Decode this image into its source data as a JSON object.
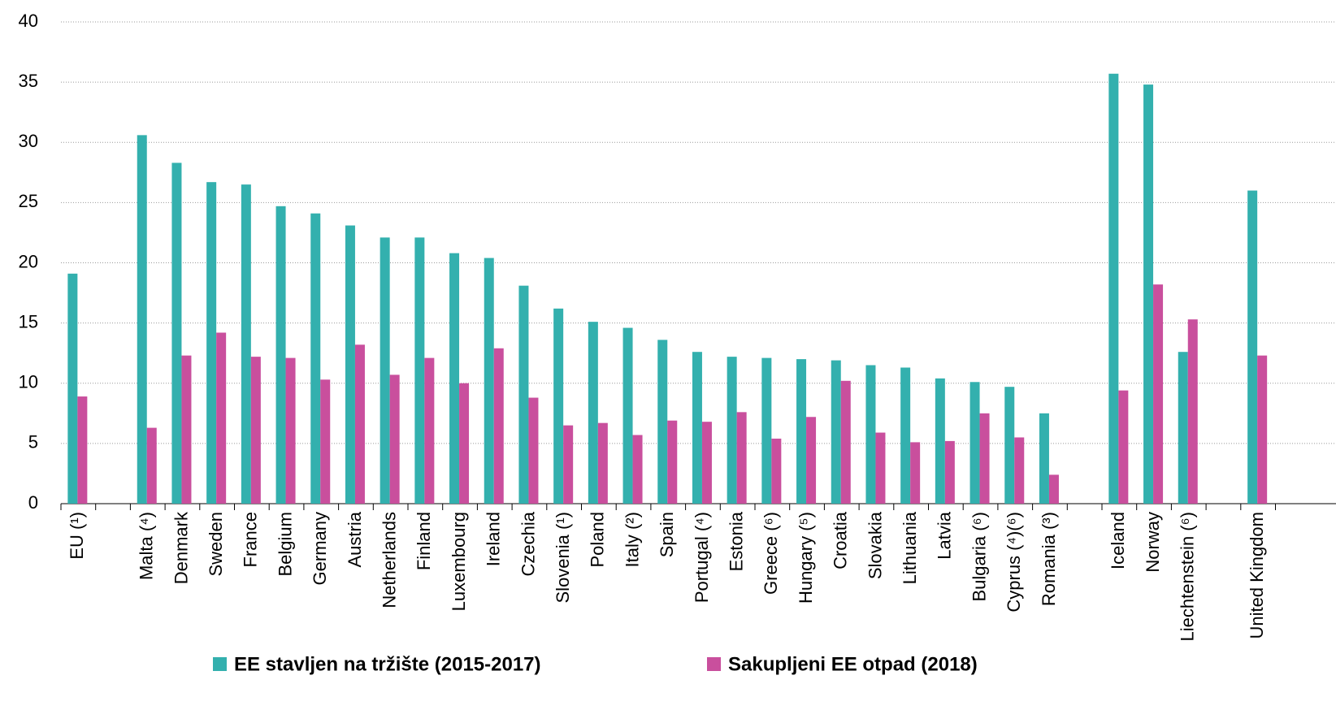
{
  "chart_data": {
    "type": "bar",
    "categories": [
      "EU (¹)",
      null,
      "Malta (⁴)",
      "Denmark",
      "Sweden",
      "France",
      "Belgium",
      "Germany",
      "Austria",
      "Netherlands",
      "Finland",
      "Luxembourg",
      "Ireland",
      "Czechia",
      "Slovenia (¹)",
      "Poland",
      "Italy (²)",
      "Spain",
      "Portugal (⁴)",
      "Estonia",
      "Greece (⁶)",
      "Hungary (⁵)",
      "Croatia",
      "Slovakia",
      "Lithuania",
      "Latvia",
      "Bulgaria (⁶)",
      "Cyprus (⁴)(⁶)",
      "Romania (³)",
      null,
      "Iceland",
      "Norway",
      "Liechtenstein (⁶)",
      null,
      "United Kingdom"
    ],
    "series": [
      {
        "name": "EE stavljen na tržište (2015-2017)",
        "color": "#33b0ae",
        "values": [
          19.1,
          null,
          30.6,
          28.3,
          26.7,
          26.5,
          24.7,
          24.1,
          23.1,
          22.1,
          22.1,
          20.8,
          20.4,
          18.1,
          16.2,
          15.1,
          14.6,
          13.6,
          12.6,
          12.2,
          12.1,
          12.0,
          11.9,
          11.5,
          11.3,
          10.4,
          10.1,
          9.7,
          7.5,
          null,
          35.7,
          34.8,
          12.6,
          null,
          26.0
        ]
      },
      {
        "name": "Sakupljeni EE otpad (2018)",
        "color": "#c94f9d",
        "values": [
          8.9,
          null,
          6.3,
          12.3,
          14.2,
          12.2,
          12.1,
          10.3,
          13.2,
          10.7,
          12.1,
          10.0,
          12.9,
          8.8,
          6.5,
          6.7,
          5.7,
          6.9,
          6.8,
          7.6,
          5.4,
          7.2,
          10.2,
          5.9,
          5.1,
          5.2,
          7.5,
          5.5,
          2.4,
          null,
          9.4,
          18.2,
          15.3,
          null,
          12.3
        ]
      }
    ],
    "ylim": [
      0,
      40
    ],
    "yticks": [
      0,
      5,
      10,
      15,
      20,
      25,
      30,
      35,
      40
    ],
    "grid": true,
    "legend": "bottom"
  }
}
